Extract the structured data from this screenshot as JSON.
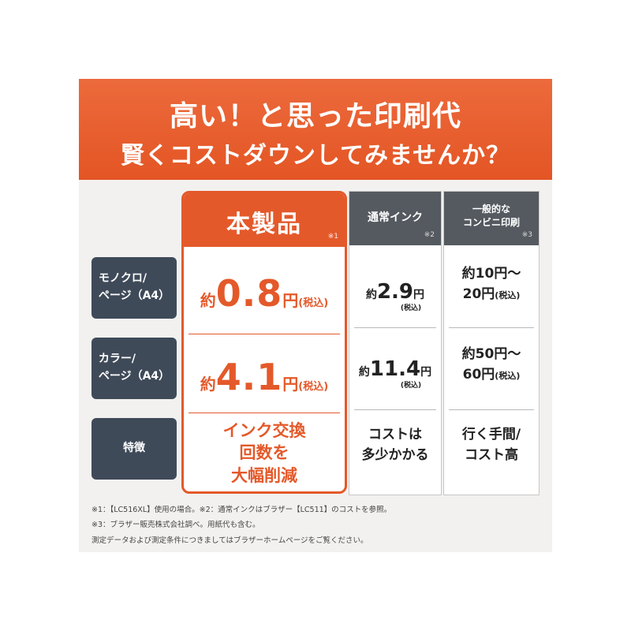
{
  "banner": {
    "line1": "高い！と思った印刷代",
    "line2": "賢くコストダウンしてみませんか？"
  },
  "rows": {
    "mono": [
      "モノクロ/",
      "ページ（A4）"
    ],
    "color": [
      "カラー/",
      "ページ（A4）"
    ],
    "feature": "特徴"
  },
  "columns": {
    "ours": {
      "title": "本製品",
      "note": "※1",
      "mono": {
        "pre": "約",
        "num": "0.8",
        "yen": "円",
        "tax": "(税込)"
      },
      "color": {
        "pre": "約",
        "num": "4.1",
        "yen": "円",
        "tax": "(税込)"
      },
      "feature": [
        "インク交換",
        "回数を",
        "大幅削減"
      ]
    },
    "normal": {
      "title": "通常インク",
      "note": "※2",
      "mono": {
        "pre": "約",
        "num": "2.9",
        "yen": "円",
        "tax": "(税込)"
      },
      "color": {
        "pre": "約",
        "num": "11.4",
        "yen": "円",
        "tax": "(税込)"
      },
      "feature": [
        "コストは",
        "多少かかる"
      ]
    },
    "conbini": {
      "title1": "一般的な",
      "title2": "コンビニ印刷",
      "note": "※3",
      "mono": [
        "約10円～",
        "20円",
        "(税込)"
      ],
      "color": [
        "約50円～",
        "60円",
        "(税込)"
      ],
      "feature": [
        "行く手間/",
        "コスト高"
      ]
    }
  },
  "footnotes": [
    "※1：【LC516XL】使用の場合。※2：通常インクはブラザー【LC511】のコストを参照。",
    "※3：ブラザー販売株式会社調べ。用紙代も含む。",
    "測定データおよび測定条件につきましてはブラザーホームページをご覧ください。"
  ],
  "colors": {
    "accent": "#e4592a",
    "label_bg": "#3f4a59",
    "gray_head": "#555a60"
  }
}
